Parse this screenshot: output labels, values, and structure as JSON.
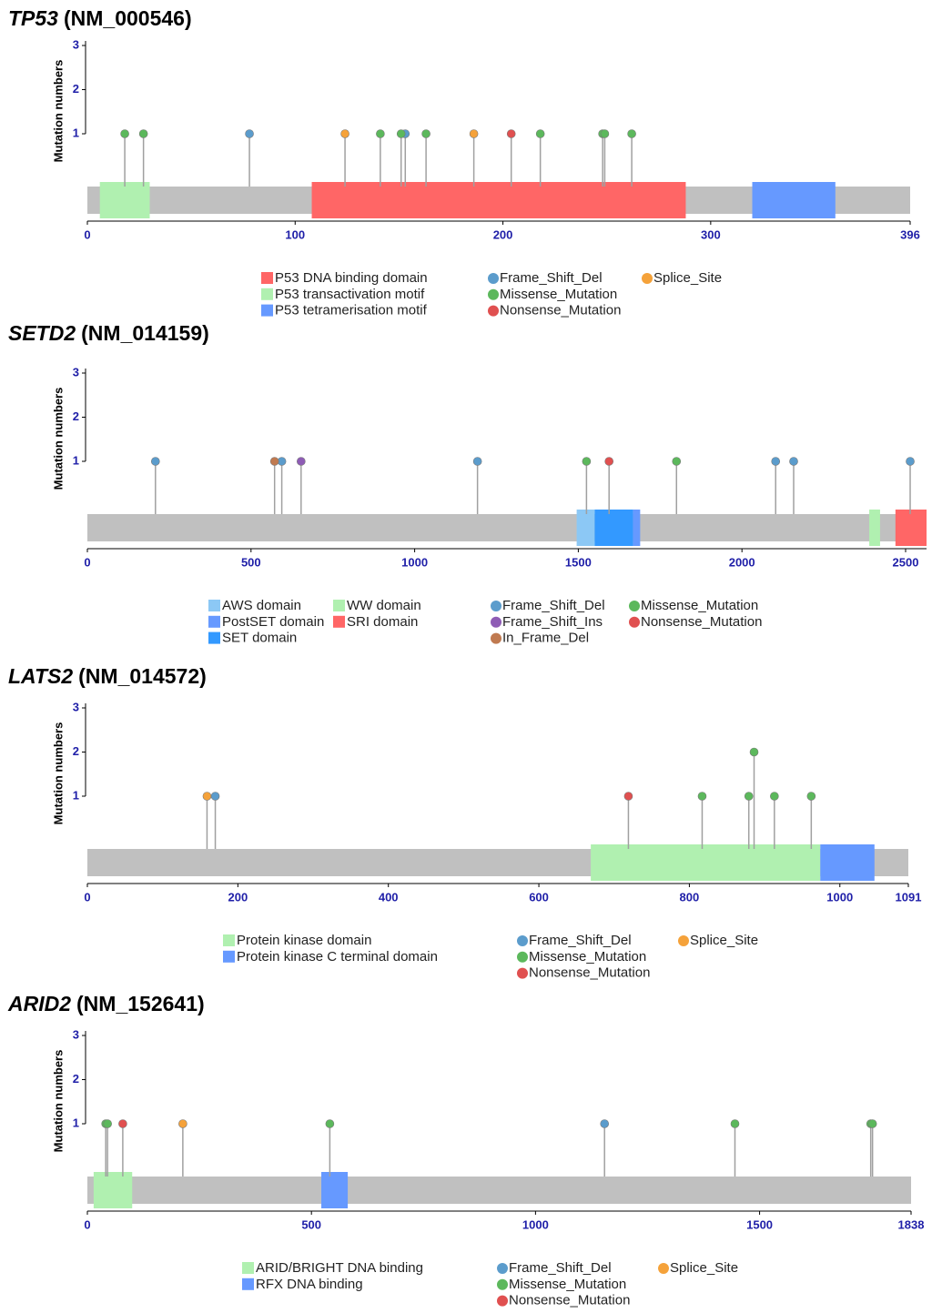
{
  "chart_data": [
    {
      "type": "lollipop",
      "gene": "TP53",
      "transcript": "(NM_000546)",
      "y_label": "Mutation numbers",
      "xlim": [
        0,
        396
      ],
      "xticks": [
        0,
        100,
        200,
        300,
        396
      ],
      "ylim": [
        0,
        3
      ],
      "yticks": [
        1,
        2,
        3
      ],
      "protein_color": "#c0c0c0",
      "domains": [
        {
          "name": "P53 DNA binding domain",
          "color": "#ff6666",
          "start": 108,
          "end": 288
        },
        {
          "name": "P53 transactivation motif",
          "color": "#b0f0b0",
          "start": 6,
          "end": 30
        },
        {
          "name": "P53 tetramerisation motif",
          "color": "#6699ff",
          "start": 320,
          "end": 360
        }
      ],
      "series": [
        {
          "name": "Frame_Shift_Del",
          "color": "#5b9ccc",
          "x": [
            78,
            153
          ],
          "values": [
            1,
            1
          ]
        },
        {
          "name": "Missense_Mutation",
          "color": "#5cb85c",
          "x": [
            18,
            27,
            141,
            151,
            163,
            218,
            248,
            249,
            262
          ],
          "values": [
            1,
            1,
            1,
            1,
            1,
            1,
            1,
            1,
            1
          ]
        },
        {
          "name": "Nonsense_Mutation",
          "color": "#e05050",
          "x": [
            204
          ],
          "values": [
            1
          ]
        },
        {
          "name": "Splice_Site",
          "color": "#f5a23a",
          "x": [
            124,
            186
          ],
          "values": [
            1,
            1
          ]
        }
      ]
    },
    {
      "type": "lollipop",
      "gene": "SETD2",
      "transcript": "(NM_014159)",
      "y_label": "Mutation numbers",
      "xlim": [
        0,
        2564
      ],
      "xticks": [
        0,
        500,
        1000,
        1500,
        2000,
        2500
      ],
      "ylim": [
        0,
        3
      ],
      "yticks": [
        1,
        2,
        3
      ],
      "protein_color": "#c0c0c0",
      "domains": [
        {
          "name": "AWS domain",
          "color": "#8cc8f5",
          "start": 1495,
          "end": 1550
        },
        {
          "name": "PostSET domain",
          "color": "#6699ff",
          "start": 1667,
          "end": 1689
        },
        {
          "name": "SET domain",
          "color": "#3399ff",
          "start": 1550,
          "end": 1667
        },
        {
          "name": "WW domain",
          "color": "#b0f0b0",
          "start": 2389,
          "end": 2422
        },
        {
          "name": "SRI domain",
          "color": "#ff6666",
          "start": 2469,
          "end": 2564
        }
      ],
      "series": [
        {
          "name": "Frame_Shift_Del",
          "color": "#5b9ccc",
          "x": [
            208,
            594,
            1192,
            2103,
            2158,
            2514
          ],
          "values": [
            1,
            1,
            1,
            1,
            1,
            1
          ]
        },
        {
          "name": "Frame_Shift_Ins",
          "color": "#8e5cb5",
          "x": [
            653
          ],
          "values": [
            1
          ]
        },
        {
          "name": "In_Frame_Del",
          "color": "#c07a50",
          "x": [
            572
          ],
          "values": [
            1
          ]
        },
        {
          "name": "Missense_Mutation",
          "color": "#5cb85c",
          "x": [
            1525,
            1800
          ],
          "values": [
            1,
            1
          ]
        },
        {
          "name": "Nonsense_Mutation",
          "color": "#e05050",
          "x": [
            1594
          ],
          "values": [
            1
          ]
        }
      ]
    },
    {
      "type": "lollipop",
      "gene": "LATS2",
      "transcript": "(NM_014572)",
      "y_label": "Mutation numbers",
      "xlim": [
        0,
        1091
      ],
      "xticks": [
        0,
        200,
        400,
        600,
        800,
        1000,
        1091
      ],
      "ylim": [
        0,
        3
      ],
      "yticks": [
        1,
        2,
        3
      ],
      "protein_color": "#c0c0c0",
      "domains": [
        {
          "name": "Protein kinase domain",
          "color": "#b0f0b0",
          "start": 669,
          "end": 974
        },
        {
          "name": "Protein kinase C terminal domain",
          "color": "#6699ff",
          "start": 974,
          "end": 1046
        }
      ],
      "series": [
        {
          "name": "Frame_Shift_Del",
          "color": "#5b9ccc",
          "x": [
            170
          ],
          "values": [
            1
          ]
        },
        {
          "name": "Missense_Mutation",
          "color": "#5cb85c",
          "x": [
            817,
            879,
            886,
            913,
            962
          ],
          "values": [
            1,
            1,
            2,
            1,
            1
          ]
        },
        {
          "name": "Nonsense_Mutation",
          "color": "#e05050",
          "x": [
            719
          ],
          "values": [
            1
          ]
        },
        {
          "name": "Splice_Site",
          "color": "#f5a23a",
          "x": [
            159
          ],
          "values": [
            1
          ]
        }
      ]
    },
    {
      "type": "lollipop",
      "gene": "ARID2",
      "transcript": "(NM_152641)",
      "y_label": "Mutation numbers",
      "xlim": [
        0,
        1838
      ],
      "xticks": [
        0,
        500,
        1000,
        1500,
        1838
      ],
      "ylim": [
        0,
        3
      ],
      "yticks": [
        1,
        2,
        3
      ],
      "protein_color": "#c0c0c0",
      "domains": [
        {
          "name": "ARID/BRIGHT DNA binding",
          "color": "#b0f0b0",
          "start": 14,
          "end": 100
        },
        {
          "name": "RFX DNA binding",
          "color": "#6699ff",
          "start": 522,
          "end": 581
        }
      ],
      "series": [
        {
          "name": "Frame_Shift_Del",
          "color": "#5b9ccc",
          "x": [
            1154
          ],
          "values": [
            1
          ]
        },
        {
          "name": "Missense_Mutation",
          "color": "#5cb85c",
          "x": [
            41,
            45,
            541,
            1445,
            1748,
            1752
          ],
          "values": [
            1,
            1,
            1,
            1,
            1,
            1
          ]
        },
        {
          "name": "Nonsense_Mutation",
          "color": "#e05050",
          "x": [
            79
          ],
          "values": [
            1
          ]
        },
        {
          "name": "Splice_Site",
          "color": "#f5a23a",
          "x": [
            213
          ],
          "values": [
            1
          ]
        }
      ]
    }
  ]
}
